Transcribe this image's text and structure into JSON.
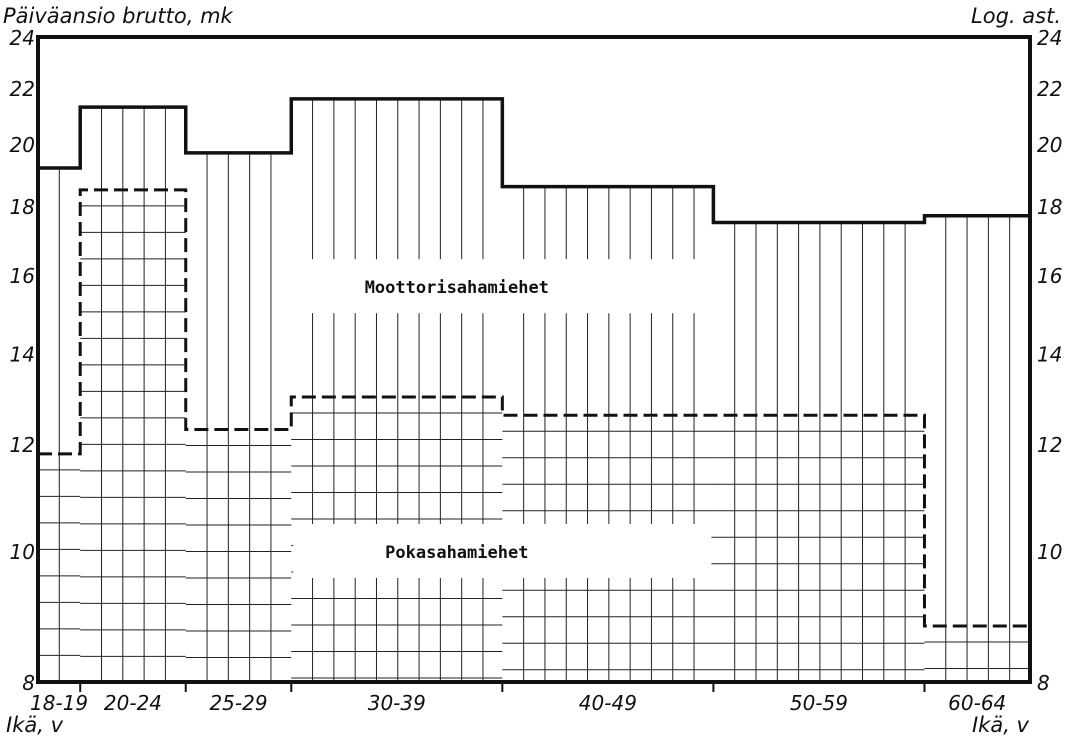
{
  "chart_data": {
    "type": "bar",
    "y_label_left": "Päiväansio brutto, mk",
    "y_label_right": "Log. ast.",
    "x_label": "Ikä, v",
    "y_scale": "log",
    "ylim": [
      8,
      24
    ],
    "y_ticks": [
      8,
      10,
      12,
      14,
      16,
      18,
      20,
      22,
      24
    ],
    "y_tick_labels": [
      "8",
      "10",
      "12",
      "14",
      "16",
      "18",
      "20",
      "22",
      "24"
    ],
    "categories": [
      "18-19",
      "20-24",
      "25-29",
      "30-39",
      "40-49",
      "50-59",
      "60-64"
    ],
    "category_widths_years": [
      2,
      5,
      5,
      10,
      10,
      10,
      5
    ],
    "series": [
      {
        "name": "Moottorisahamiehet",
        "values": [
          19.2,
          21.3,
          19.7,
          21.6,
          18.6,
          17.5,
          17.7
        ]
      },
      {
        "name": "Pokasahamiehet",
        "values": [
          11.8,
          18.5,
          12.3,
          13.0,
          12.6,
          12.6,
          8.8
        ]
      }
    ],
    "grid": true,
    "colors": {
      "line": "#111111",
      "grid": "#222222",
      "background": "#ffffff"
    }
  }
}
